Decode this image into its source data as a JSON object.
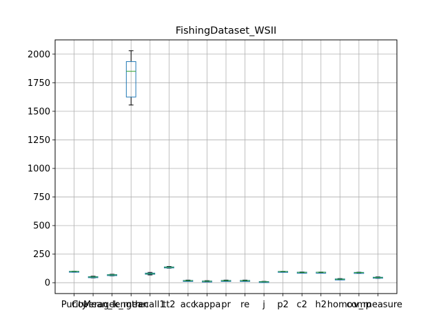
{
  "chart_data": {
    "type": "box",
    "title": "FishingDataset_WSII",
    "xlabel": "",
    "ylabel": "",
    "ylim": [
      -95,
      2125
    ],
    "yticks": [
      0,
      250,
      500,
      750,
      1000,
      1250,
      1500,
      1750,
      2000
    ],
    "grid": true,
    "colors": {
      "box": "#1f77b4",
      "median": "#2ca02c",
      "whisker": "#000000",
      "grid": "#b0b0b0"
    },
    "categories": [
      "Purity",
      "Coverage",
      "Mean_length",
      "k_mean",
      "recall1",
      "tt2",
      "acc",
      "kappa",
      "pr",
      "re",
      "j",
      "p2",
      "c2",
      "h2",
      "homo",
      "comp",
      "v_measure"
    ],
    "boxes": [
      {
        "min": 97,
        "q1": 98,
        "median": 99,
        "q3": 100,
        "max": 101
      },
      {
        "min": 42,
        "q1": 47,
        "median": 50,
        "q3": 53,
        "max": 57
      },
      {
        "min": 60,
        "q1": 65,
        "median": 68,
        "q3": 71,
        "max": 74
      },
      {
        "min": 1555,
        "q1": 1625,
        "median": 1850,
        "q3": 1935,
        "max": 2030
      },
      {
        "min": 68,
        "q1": 74,
        "median": 79,
        "q3": 84,
        "max": 90
      },
      {
        "min": 127,
        "q1": 132,
        "median": 135,
        "q3": 138,
        "max": 142
      },
      {
        "min": 13,
        "q1": 16,
        "median": 18,
        "q3": 20,
        "max": 23
      },
      {
        "min": 7,
        "q1": 11,
        "median": 13,
        "q3": 15,
        "max": 18
      },
      {
        "min": 13,
        "q1": 16,
        "median": 18,
        "q3": 20,
        "max": 23
      },
      {
        "min": 13,
        "q1": 16,
        "median": 18,
        "q3": 20,
        "max": 23
      },
      {
        "min": 3,
        "q1": 6,
        "median": 8,
        "q3": 10,
        "max": 12
      },
      {
        "min": 96,
        "q1": 97,
        "median": 98,
        "q3": 99,
        "max": 100
      },
      {
        "min": 85,
        "q1": 88,
        "median": 90,
        "q3": 92,
        "max": 94
      },
      {
        "min": 89,
        "q1": 90,
        "median": 91,
        "q3": 92,
        "max": 93
      },
      {
        "min": 25,
        "q1": 28,
        "median": 30,
        "q3": 33,
        "max": 36
      },
      {
        "min": 84,
        "q1": 86,
        "median": 88,
        "q3": 90,
        "max": 92
      },
      {
        "min": 38,
        "q1": 42,
        "median": 45,
        "q3": 48,
        "max": 51
      }
    ]
  }
}
